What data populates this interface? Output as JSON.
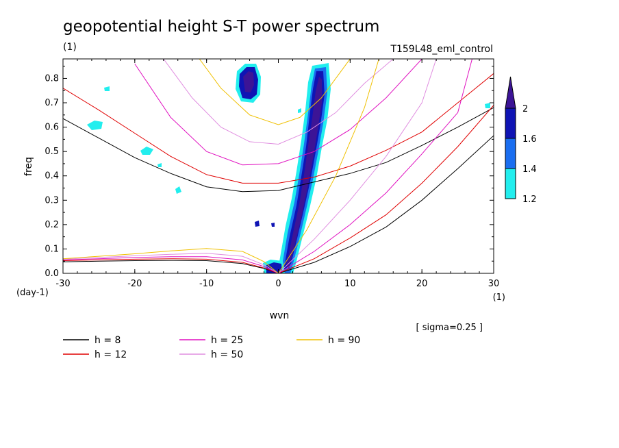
{
  "chart_data": {
    "type": "line",
    "title": "geopotential height S-T power spectrum",
    "units_label": "(1)",
    "run_label": "T159L48_eml_control",
    "xlabel": "wvn",
    "ylabel": "freq",
    "x_unit": "(1)",
    "y_unit": "(day-1)",
    "note": "[ sigma=0.25 ]",
    "xlim": [
      -30,
      30
    ],
    "ylim": [
      0,
      0.88
    ],
    "x_ticks": [
      -30,
      -20,
      -10,
      0,
      10,
      20,
      30
    ],
    "x_tick_labels": [
      "-30",
      "-20",
      "-10",
      "0",
      "10",
      "20",
      "30"
    ],
    "y_ticks": [
      0,
      0.1,
      0.2,
      0.3,
      0.4,
      0.5,
      0.6,
      0.7,
      0.8
    ],
    "y_tick_labels": [
      "0.0",
      "0.1",
      "0.2",
      "0.3",
      "0.4",
      "0.5",
      "0.6",
      "0.7",
      "0.8"
    ],
    "colorbar": {
      "levels": [
        "1.2",
        "1.4",
        "1.6",
        "2"
      ],
      "colors": [
        "#22eeee",
        "#1a6ef0",
        "#0f14b4",
        "#3c1496"
      ]
    },
    "series": [
      {
        "name": "h = 8",
        "color": "#000000",
        "kelvin": [
          [
            0,
            0
          ],
          [
            5,
            0.045
          ],
          [
            10,
            0.11
          ],
          [
            15,
            0.19
          ],
          [
            20,
            0.3
          ],
          [
            25,
            0.43
          ],
          [
            30,
            0.565
          ]
        ],
        "inertia_gravity": [
          [
            -30,
            0.635
          ],
          [
            -25,
            0.555
          ],
          [
            -20,
            0.475
          ],
          [
            -15,
            0.41
          ],
          [
            -10,
            0.355
          ],
          [
            -5,
            0.335
          ],
          [
            0,
            0.34
          ],
          [
            5,
            0.375
          ],
          [
            10,
            0.41
          ],
          [
            15,
            0.455
          ],
          [
            20,
            0.525
          ],
          [
            25,
            0.6
          ],
          [
            30,
            0.68
          ]
        ],
        "rossby": [
          [
            -30,
            0.047
          ],
          [
            -25,
            0.05
          ],
          [
            -20,
            0.052
          ],
          [
            -15,
            0.053
          ],
          [
            -10,
            0.052
          ],
          [
            -5,
            0.04
          ],
          [
            -2,
            0.02
          ],
          [
            0,
            0
          ]
        ]
      },
      {
        "name": "h = 12",
        "color": "#e00000",
        "kelvin": [
          [
            0,
            0
          ],
          [
            5,
            0.06
          ],
          [
            10,
            0.145
          ],
          [
            15,
            0.24
          ],
          [
            20,
            0.37
          ],
          [
            25,
            0.52
          ],
          [
            30,
            0.69
          ]
        ],
        "inertia_gravity": [
          [
            -30,
            0.76
          ],
          [
            -25,
            0.67
          ],
          [
            -20,
            0.575
          ],
          [
            -15,
            0.48
          ],
          [
            -10,
            0.405
          ],
          [
            -5,
            0.37
          ],
          [
            0,
            0.37
          ],
          [
            5,
            0.395
          ],
          [
            10,
            0.44
          ],
          [
            15,
            0.505
          ],
          [
            20,
            0.58
          ],
          [
            25,
            0.7
          ],
          [
            30,
            0.82
          ]
        ],
        "rossby": [
          [
            -30,
            0.052
          ],
          [
            -25,
            0.055
          ],
          [
            -20,
            0.058
          ],
          [
            -15,
            0.06
          ],
          [
            -10,
            0.058
          ],
          [
            -5,
            0.045
          ],
          [
            -2,
            0.022
          ],
          [
            0,
            0
          ]
        ]
      },
      {
        "name": "h = 25",
        "color": "#e010c0",
        "kelvin": [
          [
            0,
            0
          ],
          [
            5,
            0.09
          ],
          [
            10,
            0.2
          ],
          [
            15,
            0.33
          ],
          [
            20,
            0.49
          ],
          [
            25,
            0.66
          ],
          [
            27,
            0.88
          ]
        ],
        "inertia_gravity": [
          [
            -20,
            0.86
          ],
          [
            -15,
            0.64
          ],
          [
            -10,
            0.5
          ],
          [
            -5,
            0.445
          ],
          [
            0,
            0.45
          ],
          [
            5,
            0.5
          ],
          [
            10,
            0.59
          ],
          [
            15,
            0.72
          ],
          [
            20,
            0.88
          ]
        ],
        "rossby": [
          [
            -30,
            0.055
          ],
          [
            -25,
            0.06
          ],
          [
            -20,
            0.065
          ],
          [
            -15,
            0.068
          ],
          [
            -10,
            0.068
          ],
          [
            -5,
            0.055
          ],
          [
            -2,
            0.028
          ],
          [
            0,
            0
          ]
        ]
      },
      {
        "name": "h = 50",
        "color": "#e08ee0",
        "kelvin": [
          [
            0,
            0
          ],
          [
            5,
            0.14
          ],
          [
            10,
            0.3
          ],
          [
            15,
            0.48
          ],
          [
            20,
            0.7
          ],
          [
            22,
            0.88
          ]
        ],
        "inertia_gravity": [
          [
            -16,
            0.88
          ],
          [
            -12,
            0.72
          ],
          [
            -8,
            0.6
          ],
          [
            -4,
            0.54
          ],
          [
            0,
            0.53
          ],
          [
            4,
            0.58
          ],
          [
            8,
            0.66
          ],
          [
            12,
            0.78
          ],
          [
            16,
            0.88
          ]
        ],
        "rossby": [
          [
            -30,
            0.058
          ],
          [
            -25,
            0.065
          ],
          [
            -20,
            0.072
          ],
          [
            -15,
            0.078
          ],
          [
            -10,
            0.082
          ],
          [
            -5,
            0.07
          ],
          [
            -2,
            0.035
          ],
          [
            0,
            0
          ]
        ]
      },
      {
        "name": "h = 90",
        "color": "#f0c000",
        "kelvin": [
          [
            0,
            0
          ],
          [
            4,
            0.18
          ],
          [
            8,
            0.4
          ],
          [
            12,
            0.68
          ],
          [
            14,
            0.88
          ]
        ],
        "inertia_gravity": [
          [
            -11,
            0.88
          ],
          [
            -8,
            0.76
          ],
          [
            -4,
            0.65
          ],
          [
            0,
            0.61
          ],
          [
            3,
            0.64
          ],
          [
            6,
            0.72
          ],
          [
            10,
            0.88
          ]
        ],
        "rossby": [
          [
            -30,
            0.06
          ],
          [
            -25,
            0.07
          ],
          [
            -20,
            0.08
          ],
          [
            -15,
            0.092
          ],
          [
            -10,
            0.102
          ],
          [
            -5,
            0.09
          ],
          [
            -2,
            0.048
          ],
          [
            0,
            0
          ]
        ]
      }
    ]
  }
}
